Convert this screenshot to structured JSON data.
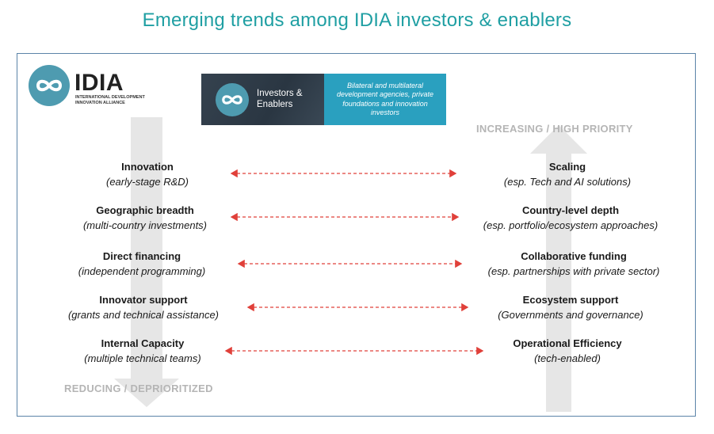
{
  "title": "Emerging trends among IDIA investors & enablers",
  "logo": {
    "wordmark": "IDIA",
    "tagline": "INTERNATIONAL DEVELOPMENT INNOVATION ALLIANCE",
    "icon": "infinity-icon"
  },
  "banner": {
    "label_line1": "Investors &",
    "label_line2": "Enablers",
    "description": "Bilateral and multilateral development agencies, private foundations and innovation investors"
  },
  "axes": {
    "increasing": "INCREASING / HIGH PRIORITY",
    "reducing": "REDUCING / DEPRIORITIZED"
  },
  "colors": {
    "title": "#1f9fa3",
    "accent": "#4e9bb0",
    "connector": "#e0403a",
    "arrow": "#e6e6e6"
  },
  "pairs": [
    {
      "left_title": "Innovation",
      "left_sub": "(early-stage R&D)",
      "right_title": "Scaling",
      "right_sub": "(esp. Tech and AI solutions)"
    },
    {
      "left_title": "Geographic breadth",
      "left_sub": "(multi-country investments)",
      "right_title": "Country-level depth",
      "right_sub": "(esp. portfolio/ecosystem approaches)"
    },
    {
      "left_title": "Direct financing",
      "left_sub": "(independent programming)",
      "right_title": "Collaborative funding",
      "right_sub": "(esp. partnerships with private sector)"
    },
    {
      "left_title": "Innovator support",
      "left_sub": "(grants and technical assistance)",
      "right_title": "Ecosystem support",
      "right_sub": "(Governments and governance)"
    },
    {
      "left_title": "Internal Capacity",
      "left_sub": "(multiple technical teams)",
      "right_title": "Operational Efficiency",
      "right_sub": "(tech-enabled)"
    }
  ]
}
